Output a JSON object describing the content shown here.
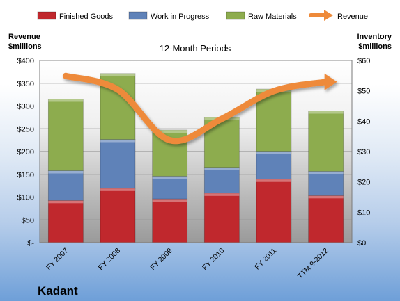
{
  "chart_data": {
    "type": "bar",
    "subtype": "stacked-bar-with-line",
    "title": "12-Month Periods",
    "company": "Kadant",
    "left_axis_title": [
      "Revenue",
      "$millions"
    ],
    "right_axis_title": [
      "Inventory",
      "$millions"
    ],
    "categories": [
      "FY 2007",
      "FY 2008",
      "FY 2009",
      "FY 2010",
      "FY 2011",
      "TTM 9-2012"
    ],
    "left_ylim": [
      0,
      400
    ],
    "left_ticks": [
      0,
      50,
      100,
      150,
      200,
      250,
      300,
      350,
      400
    ],
    "left_tick_labels": [
      "$-",
      "$50",
      "$100",
      "$150",
      "$200",
      "$250",
      "$300",
      "$350",
      "$400"
    ],
    "right_ylim": [
      0,
      60
    ],
    "right_ticks": [
      0,
      10,
      20,
      30,
      40,
      50,
      60
    ],
    "right_tick_labels": [
      "$0",
      "$10",
      "$20",
      "$30",
      "$40",
      "$50",
      "$60"
    ],
    "grid": true,
    "legend_position": "top",
    "series": [
      {
        "name": "Finished Goods",
        "kind": "bar",
        "axis": "right",
        "color": "#c0282d",
        "values": [
          13.9,
          17.9,
          14.4,
          16.3,
          20.9,
          15.5
        ]
      },
      {
        "name": "Work in Progress",
        "kind": "bar",
        "axis": "right",
        "color": "#5f82b8",
        "values": [
          9.8,
          16.1,
          7.5,
          8.5,
          9.2,
          8.0
        ]
      },
      {
        "name": "Raw Materials",
        "kind": "bar",
        "axis": "right",
        "color": "#8dac4e",
        "values": [
          23.6,
          21.7,
          15.2,
          16.5,
          20.5,
          19.9
        ]
      },
      {
        "name": "Revenue",
        "kind": "line",
        "axis": "left",
        "color": "#ee8a3a",
        "values": [
          366,
          336,
          225,
          272,
          333,
          353
        ]
      }
    ]
  }
}
